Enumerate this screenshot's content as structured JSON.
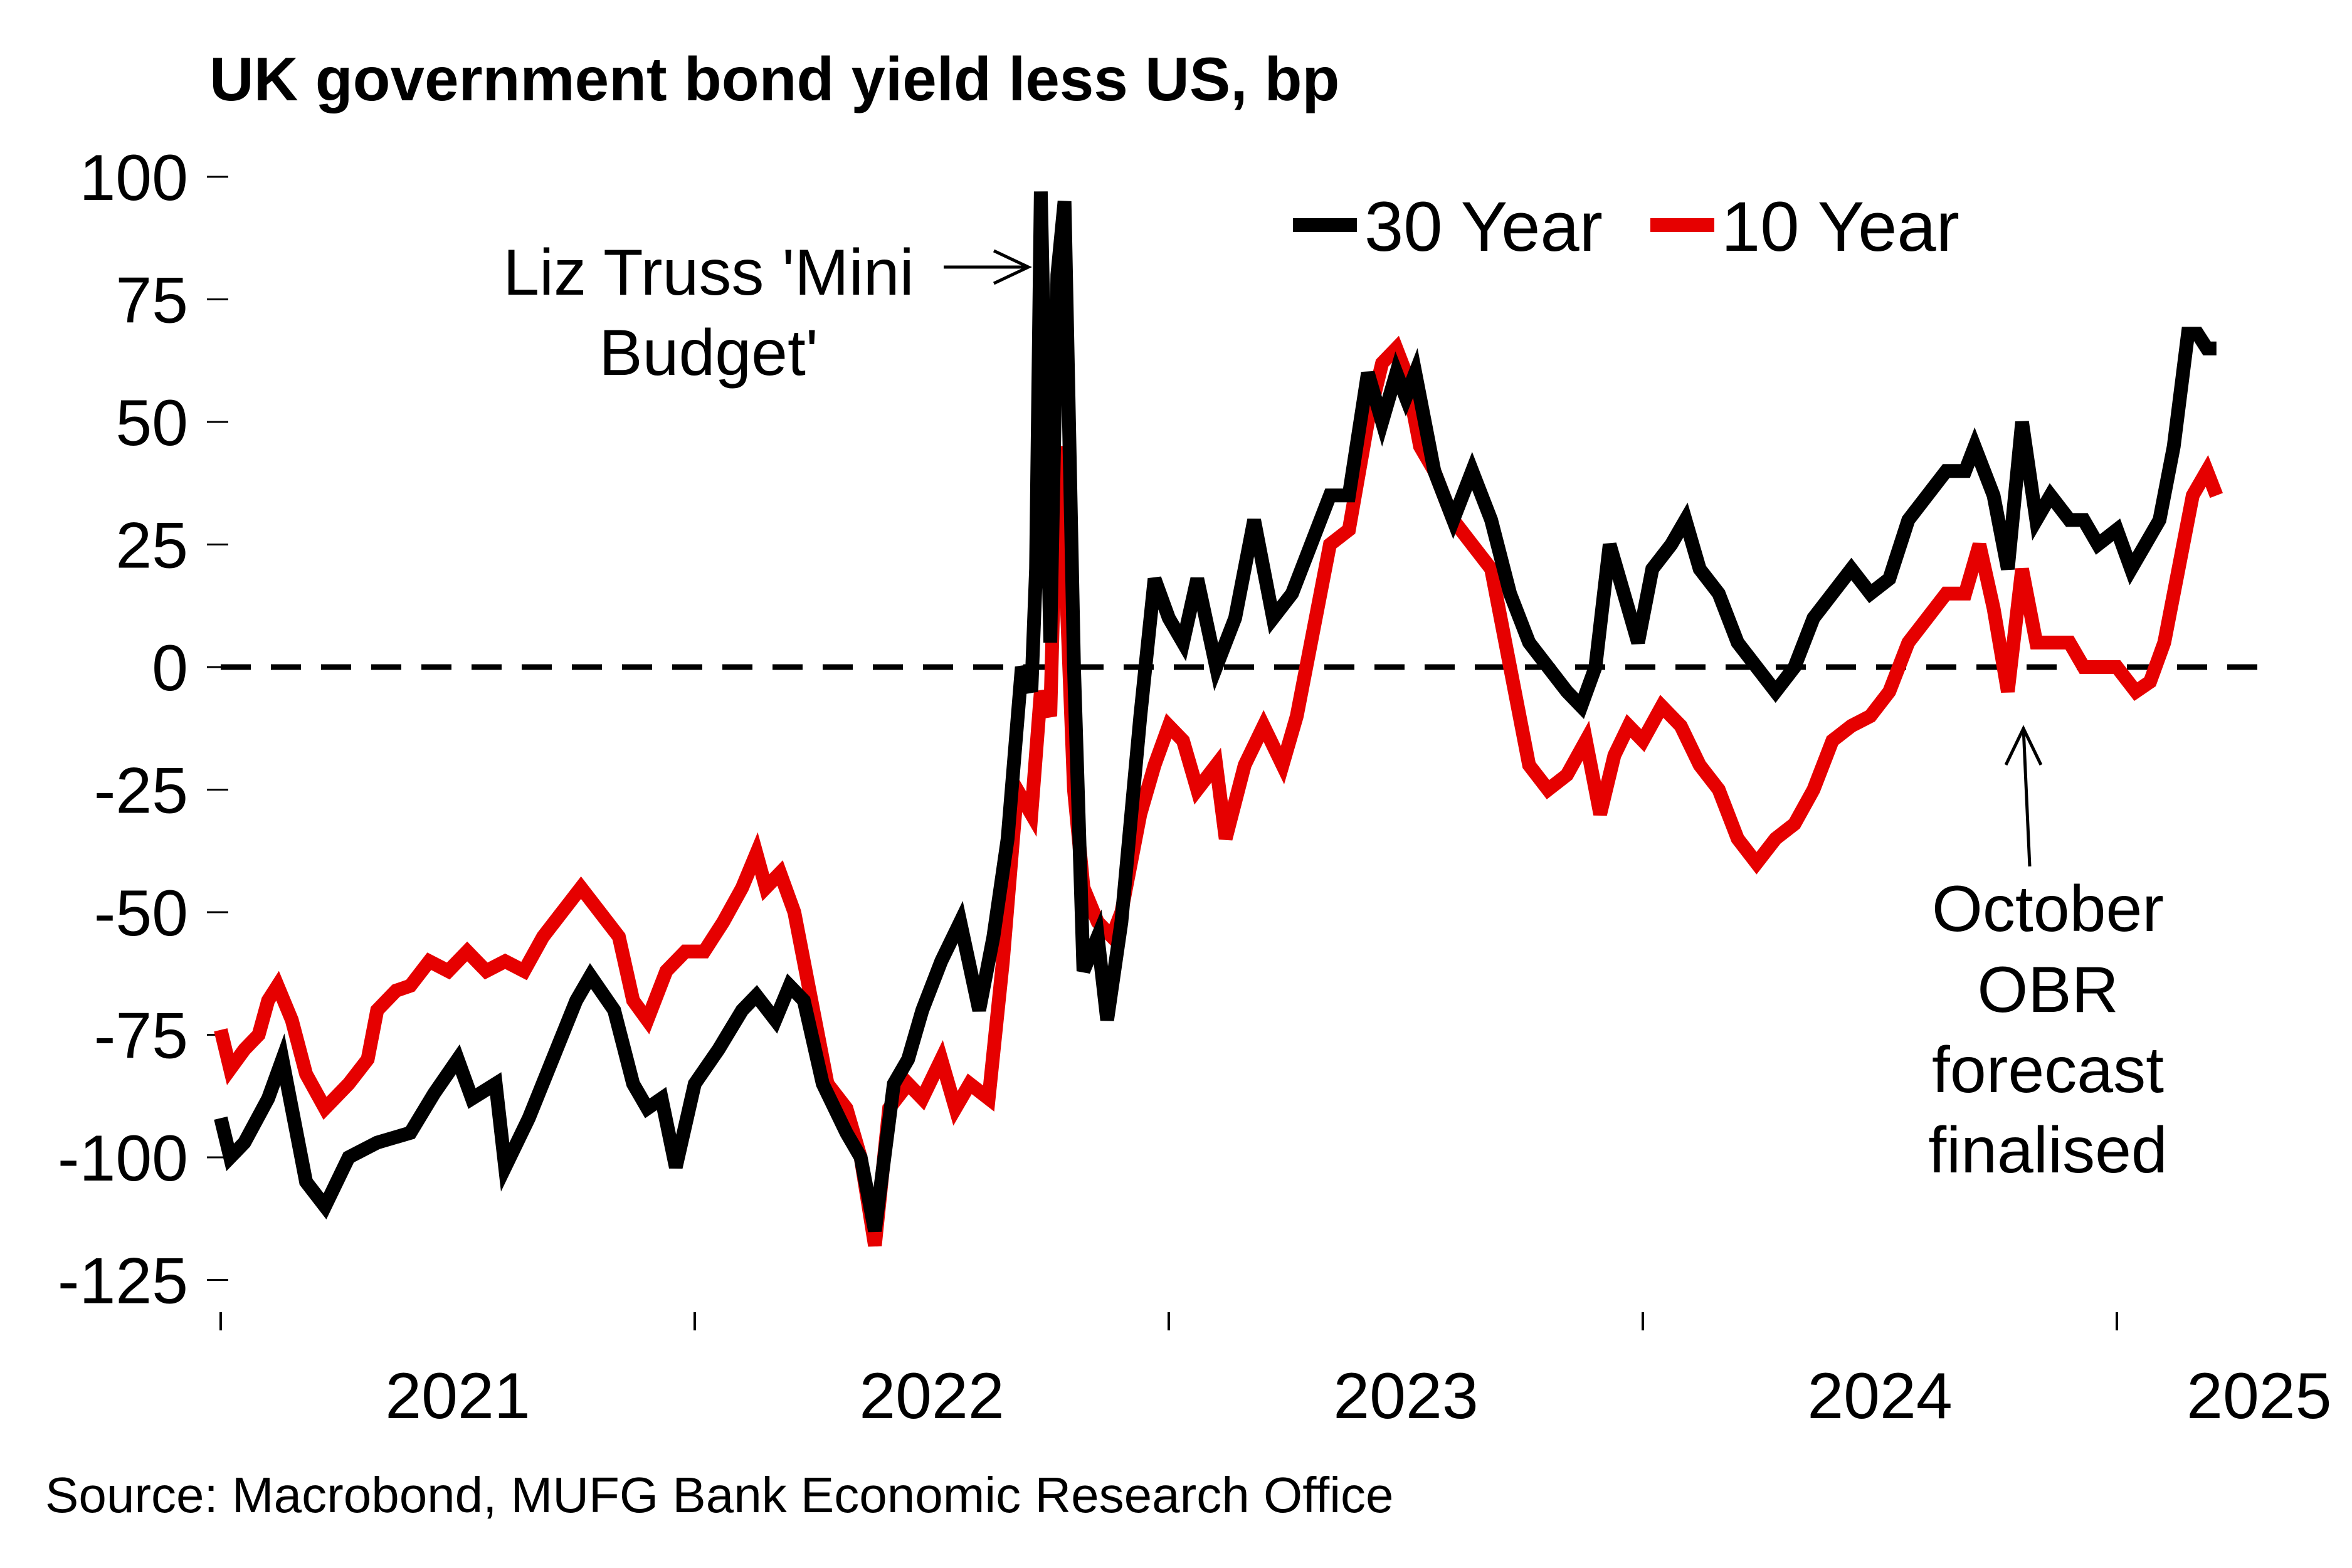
{
  "chart_data": {
    "type": "line",
    "title": "UK government bond yield less US, bp",
    "xlabel": "",
    "ylabel": "",
    "ylim": [
      -125,
      100
    ],
    "xlim": [
      2021.0,
      2025.28
    ],
    "yticks": [
      100,
      75,
      50,
      25,
      0,
      -25,
      -50,
      -75,
      -100,
      -125
    ],
    "ytick_labels": [
      "100",
      "75",
      "50",
      "25",
      "0",
      "-25",
      "-50",
      "-75",
      "-100",
      "-125"
    ],
    "xtick_labels": [
      {
        "label": "2021",
        "x": 2021.5
      },
      {
        "label": "2022",
        "x": 2022.5
      },
      {
        "label": "2023",
        "x": 2023.5
      },
      {
        "label": "2024",
        "x": 2024.5
      },
      {
        "label": "2025",
        "x": 2025.3
      }
    ],
    "xtick_marks": [
      2021.0,
      2022.0,
      2023.0,
      2024.0,
      2025.0
    ],
    "reference_line": {
      "y": 0,
      "style": "dashed"
    },
    "grid": false,
    "legend": {
      "placement": "top-right",
      "entries": [
        {
          "label": "30 Year",
          "color": "#000000"
        },
        {
          "label": "10 Year",
          "color": "#E60000"
        }
      ]
    },
    "series": [
      {
        "name": "30 Year",
        "color": "#000000",
        "x": [
          2021.0,
          2021.02,
          2021.05,
          2021.1,
          2021.13,
          2021.15,
          2021.18,
          2021.22,
          2021.27,
          2021.33,
          2021.4,
          2021.45,
          2021.5,
          2021.53,
          2021.58,
          2021.6,
          2021.65,
          2021.7,
          2021.75,
          2021.78,
          2021.83,
          2021.87,
          2021.9,
          2021.93,
          2021.96,
          2022.0,
          2022.05,
          2022.1,
          2022.13,
          2022.17,
          2022.2,
          2022.23,
          2022.27,
          2022.32,
          2022.35,
          2022.38,
          2022.42,
          2022.45,
          2022.48,
          2022.52,
          2022.56,
          2022.6,
          2022.63,
          2022.66,
          2022.69,
          2022.71,
          2022.72,
          2022.73,
          2022.75,
          2022.765,
          2022.78,
          2022.8,
          2022.82,
          2022.85,
          2022.87,
          2022.9,
          2022.94,
          2022.97,
          2023.0,
          2023.03,
          2023.06,
          2023.1,
          2023.14,
          2023.18,
          2023.22,
          2023.26,
          2023.3,
          2023.34,
          2023.38,
          2023.42,
          2023.45,
          2023.48,
          2023.5,
          2023.52,
          2023.56,
          2023.6,
          2023.64,
          2023.68,
          2023.72,
          2023.76,
          2023.8,
          2023.84,
          2023.87,
          2023.9,
          2023.93,
          2023.96,
          2023.99,
          2024.02,
          2024.06,
          2024.09,
          2024.12,
          2024.16,
          2024.2,
          2024.24,
          2024.28,
          2024.32,
          2024.36,
          2024.4,
          2024.44,
          2024.48,
          2024.52,
          2024.56,
          2024.6,
          2024.64,
          2024.68,
          2024.7,
          2024.74,
          2024.77,
          2024.8,
          2024.83,
          2024.86,
          2024.9,
          2024.93,
          2024.96,
          2025.0,
          2025.03,
          2025.06,
          2025.09,
          2025.12,
          2025.15,
          2025.17,
          2025.19,
          2025.21
        ],
        "values": [
          -92,
          -100,
          -97,
          -88,
          -80,
          -90,
          -105,
          -110,
          -100,
          -97,
          -95,
          -87,
          -80,
          -88,
          -85,
          -102,
          -92,
          -80,
          -68,
          -63,
          -70,
          -85,
          -90,
          -88,
          -102,
          -85,
          -78,
          -70,
          -67,
          -72,
          -65,
          -68,
          -85,
          -95,
          -100,
          -115,
          -85,
          -80,
          -70,
          -60,
          -52,
          -70,
          -55,
          -35,
          0,
          -5,
          20,
          97,
          5,
          80,
          95,
          0,
          -62,
          -55,
          -72,
          -52,
          -10,
          18,
          10,
          5,
          18,
          0,
          10,
          30,
          10,
          15,
          25,
          35,
          35,
          60,
          50,
          60,
          55,
          60,
          40,
          30,
          40,
          30,
          15,
          5,
          0,
          -5,
          -8,
          0,
          25,
          15,
          5,
          20,
          25,
          30,
          20,
          15,
          5,
          0,
          -5,
          0,
          10,
          15,
          20,
          15,
          18,
          30,
          35,
          40,
          40,
          45,
          35,
          20,
          50,
          30,
          35,
          30,
          30,
          25,
          28,
          20,
          25,
          30,
          45,
          68,
          68,
          65,
          65
        ]
      },
      {
        "name": "10 Year",
        "color": "#E60000",
        "x": [
          2021.0,
          2021.02,
          2021.05,
          2021.08,
          2021.1,
          2021.12,
          2021.15,
          2021.18,
          2021.22,
          2021.27,
          2021.31,
          2021.33,
          2021.37,
          2021.4,
          2021.44,
          2021.48,
          2021.52,
          2021.56,
          2021.6,
          2021.64,
          2021.68,
          2021.72,
          2021.76,
          2021.8,
          2021.84,
          2021.87,
          2021.9,
          2021.94,
          2021.98,
          2022.02,
          2022.06,
          2022.1,
          2022.13,
          2022.15,
          2022.18,
          2022.21,
          2022.25,
          2022.28,
          2022.32,
          2022.35,
          2022.38,
          2022.41,
          2022.45,
          2022.48,
          2022.52,
          2022.55,
          2022.58,
          2022.62,
          2022.65,
          2022.68,
          2022.71,
          2022.73,
          2022.75,
          2022.765,
          2022.78,
          2022.8,
          2022.82,
          2022.85,
          2022.88,
          2022.9,
          2022.94,
          2022.97,
          2023.0,
          2023.03,
          2023.06,
          2023.1,
          2023.12,
          2023.16,
          2023.2,
          2023.24,
          2023.27,
          2023.3,
          2023.34,
          2023.38,
          2023.42,
          2023.45,
          2023.48,
          2023.5,
          2023.53,
          2023.56,
          2023.6,
          2023.64,
          2023.68,
          2023.72,
          2023.76,
          2023.8,
          2023.84,
          2023.88,
          2023.91,
          2023.94,
          2023.97,
          2024.0,
          2024.04,
          2024.08,
          2024.12,
          2024.16,
          2024.2,
          2024.24,
          2024.28,
          2024.32,
          2024.36,
          2024.4,
          2024.44,
          2024.48,
          2024.52,
          2024.56,
          2024.6,
          2024.64,
          2024.68,
          2024.71,
          2024.74,
          2024.77,
          2024.8,
          2024.83,
          2024.86,
          2024.9,
          2024.93,
          2024.96,
          2025.0,
          2025.04,
          2025.07,
          2025.1,
          2025.13,
          2025.16,
          2025.19,
          2025.21
        ],
        "values": [
          -74,
          -82,
          -78,
          -75,
          -68,
          -65,
          -72,
          -83,
          -90,
          -85,
          -80,
          -70,
          -66,
          -65,
          -60,
          -62,
          -58,
          -62,
          -60,
          -62,
          -55,
          -50,
          -45,
          -50,
          -55,
          -68,
          -72,
          -62,
          -58,
          -58,
          -52,
          -45,
          -38,
          -45,
          -42,
          -50,
          -70,
          -85,
          -90,
          -100,
          -118,
          -90,
          -85,
          -88,
          -80,
          -90,
          -85,
          -88,
          -60,
          -25,
          -30,
          -5,
          -10,
          45,
          25,
          -25,
          -45,
          -52,
          -55,
          -50,
          -30,
          -20,
          -12,
          -15,
          -25,
          -20,
          -35,
          -20,
          -12,
          -20,
          -10,
          5,
          25,
          28,
          50,
          62,
          65,
          60,
          45,
          40,
          30,
          25,
          20,
          0,
          -20,
          -25,
          -22,
          -15,
          -30,
          -18,
          -12,
          -15,
          -8,
          -12,
          -20,
          -25,
          -35,
          -40,
          -35,
          -32,
          -25,
          -15,
          -12,
          -10,
          -5,
          5,
          10,
          15,
          15,
          25,
          12,
          -5,
          20,
          5,
          5,
          5,
          0,
          0,
          0,
          -5,
          -3,
          5,
          20,
          35,
          40,
          35
        ]
      }
    ],
    "annotations": [
      {
        "lines": [
          "Liz Truss 'Mini",
          "Budget'"
        ],
        "target_x": 2022.73,
        "arrow": "right"
      },
      {
        "lines": [
          "October",
          "OBR",
          "forecast",
          "finalised"
        ],
        "target_x": 2024.76,
        "arrow": "up"
      }
    ],
    "source": "Source: Macrobond, MUFG Bank Economic Research Office"
  }
}
